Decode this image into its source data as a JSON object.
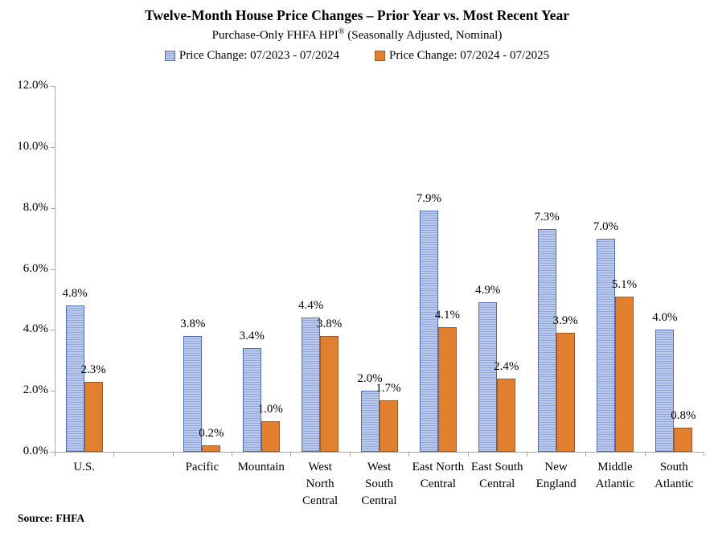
{
  "title": "Twelve-Month House Price Changes – Prior Year vs. Most Recent Year",
  "subtitle": {
    "pre": "Purchase-Only FHFA HPI",
    "sup": "®",
    "post": " (Seasonally Adjusted, Nominal)"
  },
  "legend": {
    "series1_label": "Price Change:  07/2023 - 07/2024",
    "series2_label": "Price Change:  07/2024 - 07/2025"
  },
  "source": "Source: FHFA",
  "colors": {
    "series1_fill_light": "#bac9ec",
    "series1_stripe": "#90a6d8",
    "series1_border": "#4e6cb3",
    "series2_fill": "#e2802f",
    "series2_border": "#9d5a24",
    "axis": "#a9a9a9"
  },
  "chart_data": {
    "type": "bar",
    "title": "Twelve-Month House Price Changes – Prior Year vs. Most Recent Year",
    "subtitle": "Purchase-Only FHFA HPI® (Seasonally Adjusted, Nominal)",
    "categories": [
      "U.S.",
      "",
      "Pacific",
      "Mountain",
      "West North Central",
      "West South Central",
      "East North Central",
      "East South Central",
      "New England",
      "Middle Atlantic",
      "South Atlantic"
    ],
    "category_label_lines": [
      [
        "U.S."
      ],
      [],
      [
        "Pacific"
      ],
      [
        "Mountain"
      ],
      [
        "West",
        "North",
        "Central"
      ],
      [
        "West",
        "South",
        "Central"
      ],
      [
        "East North",
        "Central"
      ],
      [
        "East South",
        "Central"
      ],
      [
        "New",
        "England"
      ],
      [
        "Middle",
        "Atlantic"
      ],
      [
        "South",
        "Atlantic"
      ]
    ],
    "series": [
      {
        "name": "Price Change:  07/2023 - 07/2024",
        "values": [
          4.8,
          null,
          3.8,
          3.4,
          4.4,
          2.0,
          7.9,
          4.9,
          7.3,
          7.0,
          4.0
        ],
        "labels": [
          "4.8%",
          null,
          "3.8%",
          "3.4%",
          "4.4%",
          "2.0%",
          "7.9%",
          "4.9%",
          "7.3%",
          "7.0%",
          "4.0%"
        ]
      },
      {
        "name": "Price Change:  07/2024 - 07/2025",
        "values": [
          2.3,
          null,
          0.2,
          1.0,
          3.8,
          1.7,
          4.1,
          2.4,
          3.9,
          5.1,
          0.8
        ],
        "labels": [
          "2.3%",
          null,
          "0.2%",
          "1.0%",
          "3.8%",
          "1.7%",
          "4.1%",
          "2.4%",
          "3.9%",
          "5.1%",
          "0.8%"
        ]
      }
    ],
    "ylim": [
      0,
      12
    ],
    "yticks": [
      {
        "value": 0,
        "label": "0.0%"
      },
      {
        "value": 2,
        "label": "2.0%"
      },
      {
        "value": 4,
        "label": "4.0%"
      },
      {
        "value": 6,
        "label": "6.0%"
      },
      {
        "value": 8,
        "label": "8.0%"
      },
      {
        "value": 10,
        "label": "10.0%"
      },
      {
        "value": 12,
        "label": "12.0%"
      }
    ],
    "grid": false,
    "legend_position": "top",
    "xlabel": "",
    "ylabel": ""
  }
}
